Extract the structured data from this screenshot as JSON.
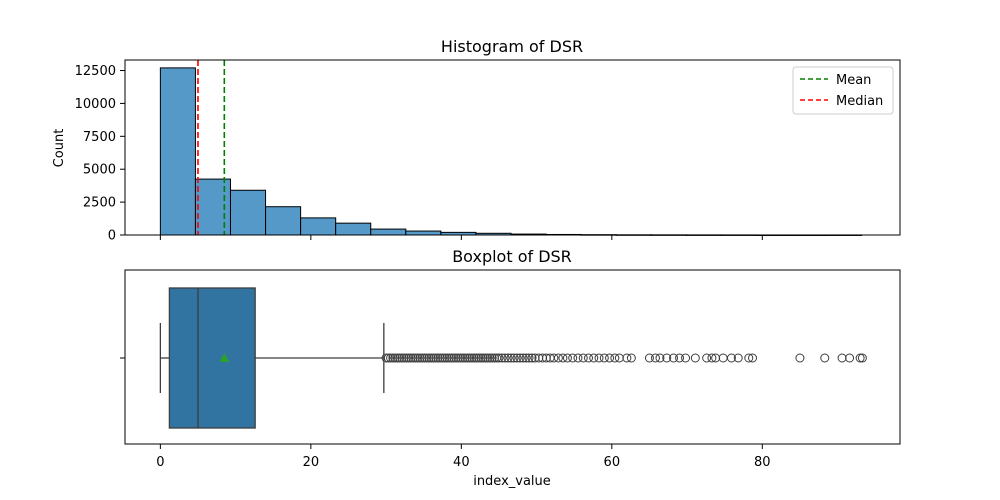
{
  "chart_data": [
    {
      "type": "bar",
      "title": "Histogram of DSR",
      "xlabel": "",
      "ylabel": "Count",
      "xlim": [
        -4.7,
        98.3
      ],
      "ylim": [
        0,
        13300
      ],
      "yticks": [
        0,
        2500,
        5000,
        7500,
        10000,
        12500
      ],
      "bins": [
        {
          "x0": 0.0,
          "x1": 4.66,
          "count": 12700
        },
        {
          "x0": 4.66,
          "x1": 9.32,
          "count": 4250
        },
        {
          "x0": 9.32,
          "x1": 13.98,
          "count": 3400
        },
        {
          "x0": 13.98,
          "x1": 18.64,
          "count": 2150
        },
        {
          "x0": 18.64,
          "x1": 23.3,
          "count": 1300
        },
        {
          "x0": 23.3,
          "x1": 27.96,
          "count": 900
        },
        {
          "x0": 27.96,
          "x1": 32.62,
          "count": 450
        },
        {
          "x0": 32.62,
          "x1": 37.28,
          "count": 300
        },
        {
          "x0": 37.28,
          "x1": 41.94,
          "count": 200
        },
        {
          "x0": 41.94,
          "x1": 46.6,
          "count": 130
        },
        {
          "x0": 46.6,
          "x1": 51.26,
          "count": 70
        },
        {
          "x0": 51.26,
          "x1": 55.92,
          "count": 40
        },
        {
          "x0": 55.92,
          "x1": 60.58,
          "count": 25
        },
        {
          "x0": 60.58,
          "x1": 65.24,
          "count": 15
        },
        {
          "x0": 65.24,
          "x1": 69.9,
          "count": 12
        },
        {
          "x0": 69.9,
          "x1": 74.56,
          "count": 8
        },
        {
          "x0": 74.56,
          "x1": 79.22,
          "count": 6
        },
        {
          "x0": 79.22,
          "x1": 83.88,
          "count": 2
        },
        {
          "x0": 83.88,
          "x1": 88.54,
          "count": 2
        },
        {
          "x0": 88.54,
          "x1": 93.2,
          "count": 4
        }
      ],
      "mean": 8.5,
      "median": 5.0,
      "legend": [
        {
          "label": "Mean",
          "color": "#008000",
          "style": "dashed"
        },
        {
          "label": "Median",
          "color": "#ff0000",
          "style": "dashed"
        }
      ],
      "legend_position": "top-right",
      "bar_color": "#5599c9",
      "grid": false
    },
    {
      "type": "boxplot",
      "title": "Boxplot of DSR",
      "xlabel": "index_value",
      "ylabel": "",
      "xlim": [
        -4.7,
        98.3
      ],
      "xticks": [
        0,
        20,
        40,
        60,
        80
      ],
      "whisker_low": 0.0,
      "q1": 1.2,
      "median": 5.0,
      "q3": 12.6,
      "whisker_high": 29.7,
      "mean": 8.5,
      "box_color": "#3274a1",
      "mean_marker_color": "#2ca02c",
      "outliers": [
        30.0,
        30.3,
        30.6,
        30.9,
        31.2,
        31.5,
        31.8,
        32.1,
        32.4,
        32.7,
        33.0,
        33.3,
        33.6,
        33.9,
        34.2,
        34.5,
        34.8,
        35.1,
        35.4,
        35.7,
        36.0,
        36.3,
        36.6,
        36.9,
        37.2,
        37.5,
        37.8,
        38.1,
        38.4,
        38.7,
        39.0,
        39.3,
        39.6,
        39.9,
        40.2,
        40.5,
        40.8,
        41.1,
        41.4,
        41.7,
        42.0,
        42.3,
        42.6,
        42.9,
        43.2,
        43.5,
        43.8,
        44.1,
        44.4,
        44.7,
        45.0,
        45.4,
        45.8,
        46.2,
        46.6,
        47.0,
        47.4,
        47.8,
        48.2,
        48.6,
        49.0,
        49.4,
        49.8,
        50.3,
        50.8,
        51.3,
        51.8,
        52.3,
        52.9,
        53.5,
        54.1,
        54.8,
        55.5,
        56.2,
        56.9,
        57.6,
        58.3,
        59.0,
        59.7,
        60.4,
        61.0,
        62.0,
        62.6,
        65.0,
        65.8,
        66.4,
        67.3,
        68.2,
        69.0,
        69.8,
        71.1,
        72.6,
        73.3,
        73.8,
        74.8,
        75.9,
        76.8,
        78.2,
        78.7,
        85.0,
        88.3,
        90.6,
        91.6,
        93.0,
        93.3
      ],
      "grid": false
    }
  ]
}
